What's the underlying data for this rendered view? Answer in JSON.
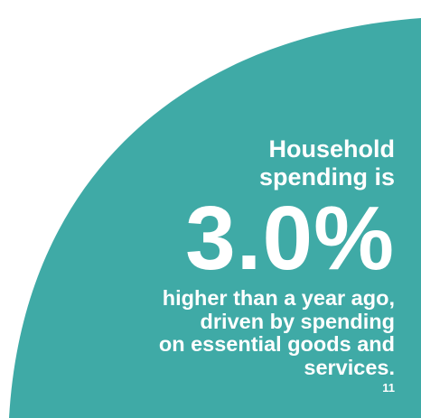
{
  "colors": {
    "background": "#ffffff",
    "shape": "#3faaa6",
    "text": "#ffffff"
  },
  "stat": {
    "intro_lines": [
      "Household",
      "spending is"
    ],
    "value": "3.0%",
    "outro_lines": [
      "higher than a year ago,",
      "driven by spending",
      "on essential goods and",
      "services."
    ],
    "footnote": "11"
  }
}
